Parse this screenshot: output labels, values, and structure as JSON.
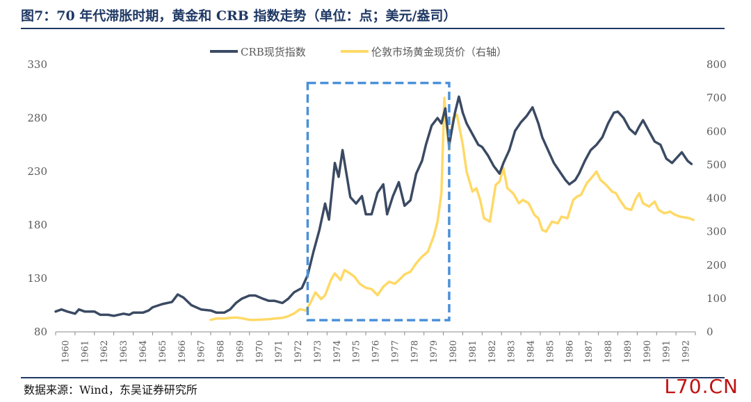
{
  "title": "图7：70 年代滞胀时期，黄金和 CRB 指数走势（单位：点；美元/盎司）",
  "source": "数据来源：Wind，东吴证券研究所",
  "watermark": "L70.CN",
  "colors": {
    "crb": "#3b4a63",
    "gold": "#ffd966",
    "box": "#4a90d9",
    "axis": "#888888",
    "text": "#595959",
    "title": "#1f3864"
  },
  "chart_data": {
    "type": "line",
    "x_categories": [
      "1960",
      "1961",
      "1962",
      "1963",
      "1964",
      "1965",
      "1966",
      "1967",
      "1968",
      "1969",
      "1970",
      "1971",
      "1972",
      "1973",
      "1974",
      "1975",
      "1976",
      "1977",
      "1978",
      "1979",
      "1980",
      "1981",
      "1982",
      "1983",
      "1984",
      "1985",
      "1986",
      "1987",
      "1988",
      "1989",
      "1990",
      "1991",
      "1992"
    ],
    "y_left": {
      "min": 80,
      "max": 330,
      "ticks": [
        80,
        130,
        180,
        230,
        280,
        330
      ]
    },
    "y_right": {
      "min": 0,
      "max": 800,
      "ticks": [
        0,
        100,
        200,
        300,
        400,
        500,
        600,
        700,
        800
      ]
    },
    "highlight_box": {
      "x_start": 1973.0,
      "x_end": 1980.3,
      "y_right_top": 745,
      "y_right_bottom": 35
    },
    "series": [
      {
        "name": "CRB现货指数",
        "axis": "left",
        "points": [
          [
            1960.0,
            99
          ],
          [
            1960.3,
            101
          ],
          [
            1960.6,
            99
          ],
          [
            1961.0,
            97
          ],
          [
            1961.2,
            101
          ],
          [
            1961.5,
            99
          ],
          [
            1962.0,
            99
          ],
          [
            1962.3,
            96
          ],
          [
            1962.7,
            96
          ],
          [
            1963.0,
            95
          ],
          [
            1963.5,
            97
          ],
          [
            1963.8,
            96
          ],
          [
            1964.0,
            98
          ],
          [
            1964.5,
            98
          ],
          [
            1964.8,
            100
          ],
          [
            1965.0,
            103
          ],
          [
            1965.5,
            106
          ],
          [
            1966.0,
            108
          ],
          [
            1966.3,
            115
          ],
          [
            1966.6,
            112
          ],
          [
            1967.0,
            105
          ],
          [
            1967.5,
            101
          ],
          [
            1968.0,
            100
          ],
          [
            1968.3,
            98
          ],
          [
            1968.7,
            98
          ],
          [
            1969.0,
            101
          ],
          [
            1969.3,
            107
          ],
          [
            1969.6,
            111
          ],
          [
            1970.0,
            114
          ],
          [
            1970.3,
            114
          ],
          [
            1970.7,
            111
          ],
          [
            1971.0,
            109
          ],
          [
            1971.3,
            109
          ],
          [
            1971.7,
            107
          ],
          [
            1972.0,
            111
          ],
          [
            1972.3,
            117
          ],
          [
            1972.7,
            121
          ],
          [
            1973.0,
            133
          ],
          [
            1973.3,
            155
          ],
          [
            1973.6,
            175
          ],
          [
            1973.9,
            200
          ],
          [
            1974.1,
            185
          ],
          [
            1974.4,
            238
          ],
          [
            1974.6,
            225
          ],
          [
            1974.8,
            250
          ],
          [
            1975.0,
            228
          ],
          [
            1975.2,
            206
          ],
          [
            1975.5,
            200
          ],
          [
            1975.8,
            207
          ],
          [
            1976.0,
            190
          ],
          [
            1976.3,
            190
          ],
          [
            1976.6,
            210
          ],
          [
            1976.9,
            218
          ],
          [
            1977.1,
            190
          ],
          [
            1977.4,
            207
          ],
          [
            1977.7,
            220
          ],
          [
            1978.0,
            198
          ],
          [
            1978.3,
            203
          ],
          [
            1978.6,
            228
          ],
          [
            1978.9,
            240
          ],
          [
            1979.1,
            255
          ],
          [
            1979.4,
            273
          ],
          [
            1979.7,
            280
          ],
          [
            1979.9,
            275
          ],
          [
            1980.1,
            289
          ],
          [
            1980.3,
            255
          ],
          [
            1980.6,
            285
          ],
          [
            1980.8,
            300
          ],
          [
            1981.0,
            285
          ],
          [
            1981.2,
            275
          ],
          [
            1981.5,
            265
          ],
          [
            1981.8,
            255
          ],
          [
            1982.0,
            253
          ],
          [
            1982.3,
            245
          ],
          [
            1982.6,
            235
          ],
          [
            1982.9,
            228
          ],
          [
            1983.1,
            238
          ],
          [
            1983.4,
            250
          ],
          [
            1983.7,
            268
          ],
          [
            1984.0,
            276
          ],
          [
            1984.3,
            282
          ],
          [
            1984.6,
            290
          ],
          [
            1984.9,
            275
          ],
          [
            1985.1,
            262
          ],
          [
            1985.4,
            250
          ],
          [
            1985.7,
            238
          ],
          [
            1986.0,
            230
          ],
          [
            1986.3,
            222
          ],
          [
            1986.5,
            218
          ],
          [
            1986.8,
            222
          ],
          [
            1987.0,
            228
          ],
          [
            1987.3,
            240
          ],
          [
            1987.6,
            250
          ],
          [
            1987.9,
            255
          ],
          [
            1988.2,
            262
          ],
          [
            1988.5,
            275
          ],
          [
            1988.8,
            285
          ],
          [
            1989.0,
            286
          ],
          [
            1989.3,
            280
          ],
          [
            1989.6,
            270
          ],
          [
            1989.9,
            265
          ],
          [
            1990.1,
            272
          ],
          [
            1990.3,
            278
          ],
          [
            1990.6,
            268
          ],
          [
            1990.9,
            258
          ],
          [
            1991.2,
            255
          ],
          [
            1991.5,
            242
          ],
          [
            1991.8,
            238
          ],
          [
            1992.0,
            242
          ],
          [
            1992.3,
            248
          ],
          [
            1992.6,
            240
          ],
          [
            1992.8,
            237
          ]
        ]
      },
      {
        "name": "伦敦市场黄金现货价（右轴）",
        "axis": "right",
        "points": [
          [
            1968.0,
            36
          ],
          [
            1968.3,
            40
          ],
          [
            1968.7,
            40
          ],
          [
            1969.0,
            42
          ],
          [
            1969.3,
            43
          ],
          [
            1969.6,
            41
          ],
          [
            1970.0,
            36
          ],
          [
            1970.3,
            36
          ],
          [
            1970.7,
            37
          ],
          [
            1971.0,
            38
          ],
          [
            1971.3,
            40
          ],
          [
            1971.7,
            42
          ],
          [
            1972.0,
            47
          ],
          [
            1972.3,
            55
          ],
          [
            1972.6,
            68
          ],
          [
            1972.9,
            64
          ],
          [
            1973.1,
            82
          ],
          [
            1973.4,
            118
          ],
          [
            1973.7,
            98
          ],
          [
            1973.9,
            110
          ],
          [
            1974.2,
            155
          ],
          [
            1974.4,
            175
          ],
          [
            1974.7,
            155
          ],
          [
            1974.9,
            185
          ],
          [
            1975.1,
            178
          ],
          [
            1975.4,
            166
          ],
          [
            1975.7,
            143
          ],
          [
            1976.0,
            132
          ],
          [
            1976.3,
            128
          ],
          [
            1976.6,
            110
          ],
          [
            1976.9,
            135
          ],
          [
            1977.2,
            150
          ],
          [
            1977.5,
            144
          ],
          [
            1977.8,
            160
          ],
          [
            1978.0,
            172
          ],
          [
            1978.3,
            180
          ],
          [
            1978.6,
            205
          ],
          [
            1978.9,
            225
          ],
          [
            1979.2,
            240
          ],
          [
            1979.5,
            285
          ],
          [
            1979.7,
            330
          ],
          [
            1979.9,
            415
          ],
          [
            1980.05,
            700
          ],
          [
            1980.15,
            620
          ],
          [
            1980.3,
            545
          ],
          [
            1980.5,
            640
          ],
          [
            1980.7,
            650
          ],
          [
            1981.0,
            560
          ],
          [
            1981.2,
            480
          ],
          [
            1981.5,
            420
          ],
          [
            1981.7,
            430
          ],
          [
            1981.9,
            395
          ],
          [
            1982.1,
            340
          ],
          [
            1982.4,
            330
          ],
          [
            1982.7,
            440
          ],
          [
            1982.9,
            450
          ],
          [
            1983.1,
            490
          ],
          [
            1983.3,
            430
          ],
          [
            1983.6,
            415
          ],
          [
            1983.9,
            385
          ],
          [
            1984.1,
            395
          ],
          [
            1984.4,
            385
          ],
          [
            1984.7,
            350
          ],
          [
            1984.9,
            340
          ],
          [
            1985.1,
            305
          ],
          [
            1985.3,
            300
          ],
          [
            1985.6,
            330
          ],
          [
            1985.9,
            325
          ],
          [
            1986.1,
            345
          ],
          [
            1986.4,
            340
          ],
          [
            1986.7,
            395
          ],
          [
            1986.9,
            405
          ],
          [
            1987.1,
            410
          ],
          [
            1987.4,
            445
          ],
          [
            1987.7,
            465
          ],
          [
            1987.9,
            480
          ],
          [
            1988.1,
            455
          ],
          [
            1988.4,
            440
          ],
          [
            1988.7,
            420
          ],
          [
            1988.9,
            415
          ],
          [
            1989.1,
            395
          ],
          [
            1989.4,
            370
          ],
          [
            1989.7,
            365
          ],
          [
            1989.9,
            395
          ],
          [
            1990.1,
            415
          ],
          [
            1990.3,
            385
          ],
          [
            1990.6,
            375
          ],
          [
            1990.9,
            390
          ],
          [
            1991.1,
            365
          ],
          [
            1991.4,
            355
          ],
          [
            1991.7,
            360
          ],
          [
            1991.9,
            352
          ],
          [
            1992.2,
            345
          ],
          [
            1992.5,
            342
          ],
          [
            1992.7,
            340
          ],
          [
            1992.9,
            335
          ]
        ]
      }
    ]
  }
}
